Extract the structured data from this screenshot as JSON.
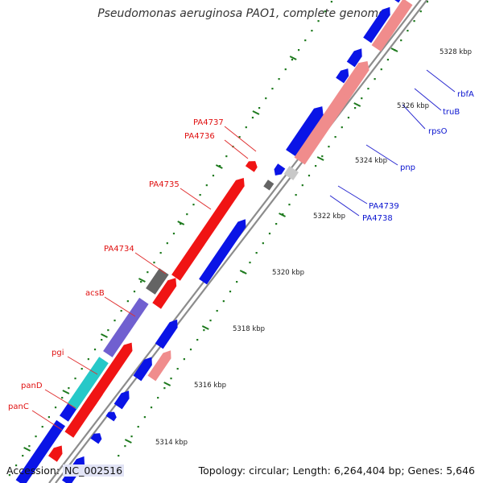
{
  "title": "Pseudomonas aeruginosa PAO1, complete genome",
  "footer": {
    "accession_label": "Accession:",
    "accession": "NC_002516",
    "topology": "Topology: circular; Length: 6,264,404 bp; Genes: 5,646"
  },
  "colors": {
    "backbone": "#8c8c8c",
    "fwd_blue": "#0a14e6",
    "fwd_pink": "#f08c8c",
    "rev_red": "#f01414",
    "grey_dark": "#646464",
    "grey_light": "#c8c8c8",
    "purple": "#7060d0",
    "cyan": "#26c8c8",
    "tick": "#1e7a1e",
    "label_red": "#e01010",
    "label_blue": "#0a14d0",
    "leader_red": "#e03030",
    "leader_blue": "#2828d0"
  },
  "scale_labels": [
    "5314 kbp",
    "5316 kbp",
    "5318 kbp",
    "5320 kbp",
    "5322 kbp",
    "5324 kbp",
    "5326 kbp",
    "5328 kbp"
  ],
  "gene_labels_left": [
    "PA4737",
    "PA4736",
    "PA4735",
    "PA4734",
    "acsB",
    "pgi",
    "panD",
    "panC"
  ],
  "gene_labels_right": [
    "rbfA",
    "truB",
    "rpsO",
    "pnp",
    "PA4739",
    "PA4738"
  ],
  "features": [
    {
      "strand": "fwd",
      "color": "fwd_blue"
    },
    {
      "strand": "fwd",
      "color": "fwd_pink"
    },
    {
      "strand": "rev",
      "color": "rev_red"
    },
    {
      "strand": "rev",
      "color": "grey_dark"
    },
    {
      "strand": "rev",
      "color": "purple"
    },
    {
      "strand": "rev",
      "color": "cyan"
    }
  ]
}
